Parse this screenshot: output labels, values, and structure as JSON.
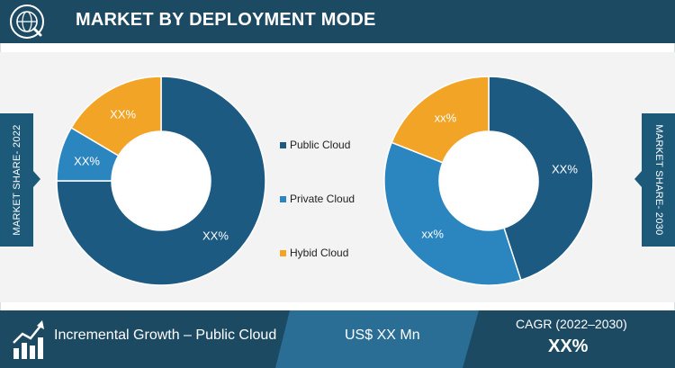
{
  "header": {
    "title": "MARKET BY DEPLOYMENT MODE",
    "icon": "globe-search-icon"
  },
  "colors": {
    "public": "#1d5a82",
    "private": "#2b85be",
    "hybrid": "#f2a427",
    "navy": "#1d4a63",
    "steel": "#2a6d95"
  },
  "side_labels": {
    "left": "MARKET SHARE- 2022",
    "right": "MARKET SHARE- 2030"
  },
  "legend": [
    {
      "label": "Public Cloud",
      "color": "#1d5a82"
    },
    {
      "label": "Private Cloud",
      "color": "#2b85be"
    },
    {
      "label": "Hybid Cloud",
      "color": "#f2a427"
    }
  ],
  "chart_data": [
    {
      "type": "pie",
      "title": "MARKET SHARE- 2022",
      "donut": true,
      "categories": [
        "Public Cloud",
        "Private Cloud",
        "Hybid Cloud"
      ],
      "values": [
        75,
        8.5,
        16.5
      ],
      "data_labels": [
        "XX%",
        "XX%",
        "XX%"
      ],
      "colors": [
        "#1d5a82",
        "#2b85be",
        "#f2a427"
      ]
    },
    {
      "type": "pie",
      "title": "MARKET SHARE- 2030",
      "donut": true,
      "categories": [
        "Public Cloud",
        "Private Cloud",
        "Hybid Cloud"
      ],
      "values": [
        45,
        36,
        19
      ],
      "data_labels": [
        "XX%",
        "xx%",
        "xx%"
      ],
      "colors": [
        "#1d5a82",
        "#2b85be",
        "#f2a427"
      ]
    }
  ],
  "footer": {
    "growth_label": "Incremental Growth – Public Cloud",
    "value_label": "US$ XX Mn",
    "cagr_label": "CAGR (2022–2030)",
    "cagr_value": "XX%",
    "icon": "growth-chart-icon"
  }
}
